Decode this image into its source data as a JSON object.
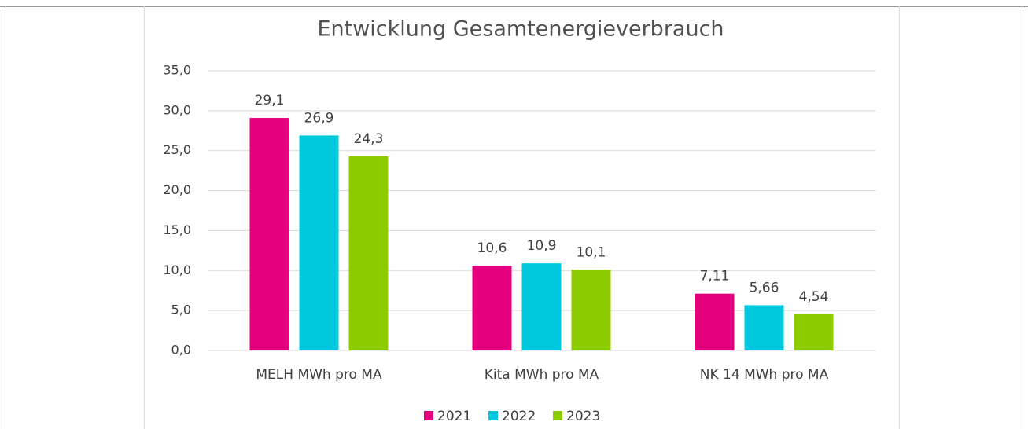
{
  "chart_data": {
    "type": "bar",
    "title": "Entwicklung Gesamtenergieverbrauch",
    "categories": [
      "MELH MWh pro MA",
      "Kita MWh pro MA",
      "NK 14 MWh pro MA"
    ],
    "series": [
      {
        "name": "2021",
        "color": "#e5007d",
        "values": [
          29.1,
          10.6,
          7.11
        ],
        "value_labels": [
          "29,1",
          "10,6",
          "7,11"
        ]
      },
      {
        "name": "2022",
        "color": "#00c9dd",
        "values": [
          26.9,
          10.9,
          5.66
        ],
        "value_labels": [
          "26,9",
          "10,9",
          "5,66"
        ]
      },
      {
        "name": "2023",
        "color": "#8ccb00",
        "values": [
          24.3,
          10.1,
          4.54
        ],
        "value_labels": [
          "24,3",
          "10,1",
          "4,54"
        ]
      }
    ],
    "ylim": [
      0,
      35
    ],
    "yticks": [
      {
        "value": 0,
        "label": "0,0"
      },
      {
        "value": 5,
        "label": "5,0"
      },
      {
        "value": 10,
        "label": "10,0"
      },
      {
        "value": 15,
        "label": "15,0"
      },
      {
        "value": 20,
        "label": "20,0"
      },
      {
        "value": 25,
        "label": "25,0"
      },
      {
        "value": 30,
        "label": "30,0"
      },
      {
        "value": 35,
        "label": "35,0"
      }
    ],
    "grid": true,
    "legend": "bottom"
  }
}
